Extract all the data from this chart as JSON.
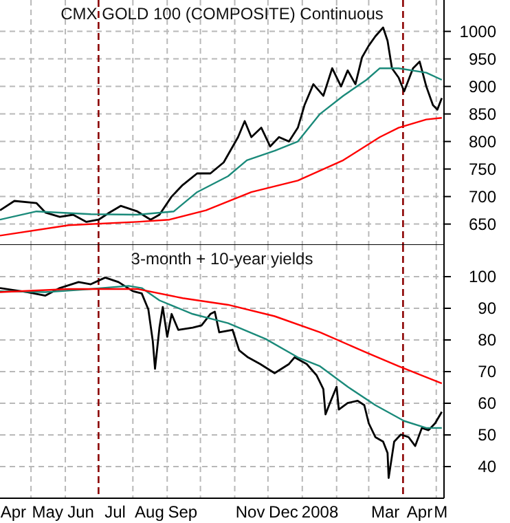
{
  "chart_data": [
    {
      "type": "line",
      "title": "CMX GOLD 100 (COMPOSITE) Continuous",
      "xlim": [
        "2007-04-03",
        "2008-05-08"
      ],
      "xticks": [
        {
          "value": "2007-05-01",
          "label": null
        },
        {
          "value": "2007-06-01",
          "label": null
        },
        {
          "value": "2007-08-01",
          "label": null
        },
        {
          "value": "2007-09-01",
          "label": null
        },
        {
          "value": "2007-10-01",
          "label": null
        },
        {
          "value": "2007-11-01",
          "label": null
        },
        {
          "value": "2007-12-01",
          "label": null
        },
        {
          "value": "2008-01-01",
          "label": null
        },
        {
          "value": "2008-02-01",
          "label": null
        },
        {
          "value": "2008-03-01",
          "label": null
        },
        {
          "value": "2008-05-01",
          "label": null
        }
      ],
      "ylim": [
        612,
        1057
      ],
      "yticks": [
        650,
        700,
        750,
        800,
        850,
        900,
        950,
        1000
      ],
      "grid": true,
      "tick_labels": "y",
      "ref_lines": [
        {
          "axis": "x",
          "value": "2007-07-01",
          "color": "#8b0000",
          "line_style": "dashed"
        },
        {
          "axis": "x",
          "value": "2008-04-01",
          "color": "#8b0000",
          "line_style": "dashed"
        }
      ],
      "series": [
        {
          "color": "#000000",
          "x": [
            "2007-04-03",
            "2007-04-16",
            "2007-05-06",
            "2007-05-14",
            "2007-05-27",
            "2007-06-08",
            "2007-06-20",
            "2007-07-01",
            "2007-07-11",
            "2007-07-21",
            "2007-08-05",
            "2007-08-17",
            "2007-08-25",
            "2007-09-05",
            "2007-09-15",
            "2007-09-28",
            "2007-10-10",
            "2007-10-22",
            "2007-11-04",
            "2007-11-10",
            "2007-11-16",
            "2007-11-25",
            "2007-12-03",
            "2007-12-11",
            "2007-12-20",
            "2007-12-28",
            "2008-01-03",
            "2008-01-11",
            "2008-01-20",
            "2008-01-28",
            "2008-02-05",
            "2008-02-11",
            "2008-02-18",
            "2008-02-24",
            "2008-03-01",
            "2008-03-07",
            "2008-03-14",
            "2008-03-18",
            "2008-03-22",
            "2008-03-28",
            "2008-04-02",
            "2008-04-10",
            "2008-04-16",
            "2008-04-22",
            "2008-04-28",
            "2008-05-02",
            "2008-05-06"
          ],
          "values": [
            675,
            692,
            688,
            671,
            663,
            667,
            654,
            658,
            671,
            683,
            673,
            658,
            667,
            700,
            721,
            742,
            742,
            762,
            808,
            837,
            808,
            825,
            791,
            808,
            800,
            825,
            866,
            904,
            883,
            933,
            900,
            929,
            904,
            953,
            974,
            991,
            1007,
            983,
            933,
            916,
            891,
            933,
            945,
            900,
            866,
            858,
            879
          ]
        },
        {
          "color": "#1a8a7a",
          "x": [
            "2007-04-03",
            "2007-05-06",
            "2007-06-24",
            "2007-08-05",
            "2007-09-07",
            "2007-09-28",
            "2007-10-26",
            "2007-11-12",
            "2007-12-07",
            "2007-12-28",
            "2008-01-17",
            "2008-02-07",
            "2008-02-28",
            "2008-03-11",
            "2008-03-28",
            "2008-04-22",
            "2008-05-06"
          ],
          "values": [
            658,
            673,
            668,
            667,
            673,
            708,
            737,
            766,
            783,
            800,
            850,
            883,
            912,
            933,
            933,
            925,
            912
          ]
        },
        {
          "color": "#ff0000",
          "x": [
            "2007-04-03",
            "2007-06-04",
            "2007-08-05",
            "2007-09-03",
            "2007-10-06",
            "2007-11-16",
            "2007-12-28",
            "2008-02-07",
            "2008-03-11",
            "2008-03-28",
            "2008-04-22",
            "2008-05-06"
          ],
          "values": [
            629,
            648,
            654,
            658,
            675,
            708,
            729,
            766,
            808,
            825,
            840,
            843
          ]
        }
      ]
    },
    {
      "type": "line",
      "title": "3-month + 10-year yields",
      "xlim": [
        "2007-04-03",
        "2008-05-08"
      ],
      "xticks": [
        {
          "value": "2007-04-15",
          "label": "Apr"
        },
        {
          "value": "2007-05-01",
          "label": null
        },
        {
          "value": "2007-05-16",
          "label": "May"
        },
        {
          "value": "2007-06-01",
          "label": null
        },
        {
          "value": "2007-06-15",
          "label": "Jun"
        },
        {
          "value": "2007-07-16",
          "label": "Jul"
        },
        {
          "value": "2007-08-01",
          "label": null
        },
        {
          "value": "2007-08-16",
          "label": "Aug"
        },
        {
          "value": "2007-09-01",
          "label": null
        },
        {
          "value": "2007-09-15",
          "label": "Sep"
        },
        {
          "value": "2007-10-01",
          "label": null
        },
        {
          "value": "2007-11-01",
          "label": null
        },
        {
          "value": "2007-11-15",
          "label": "Nov"
        },
        {
          "value": "2007-12-01",
          "label": null
        },
        {
          "value": "2007-12-15",
          "label": "Dec"
        },
        {
          "value": "2008-01-01",
          "label": null
        },
        {
          "value": "2008-01-17",
          "label": "2008"
        },
        {
          "value": "2008-02-01",
          "label": null
        },
        {
          "value": "2008-03-01",
          "label": null
        },
        {
          "value": "2008-03-16",
          "label": "Mar"
        },
        {
          "value": "2008-04-16",
          "label": "Apr"
        },
        {
          "value": "2008-05-01",
          "label": null
        },
        {
          "value": "2008-05-05",
          "label": "M"
        }
      ],
      "ylim": [
        30,
        110
      ],
      "yticks": [
        40,
        50,
        60,
        70,
        80,
        90,
        100
      ],
      "grid": true,
      "ref_lines": [
        {
          "axis": "x",
          "value": "2007-07-01",
          "color": "#8b0000",
          "line_style": "dashed"
        },
        {
          "axis": "x",
          "value": "2008-04-01",
          "color": "#8b0000",
          "line_style": "dashed"
        }
      ],
      "series": [
        {
          "color": "#000000",
          "x": [
            "2007-04-03",
            "2007-04-28",
            "2007-05-14",
            "2007-05-27",
            "2007-06-13",
            "2007-06-24",
            "2007-07-07",
            "2007-07-19",
            "2007-08-01",
            "2007-08-09",
            "2007-08-15",
            "2007-08-19",
            "2007-08-21",
            "2007-08-25",
            "2007-08-28",
            "2007-09-01",
            "2007-09-05",
            "2007-09-11",
            "2007-09-24",
            "2007-10-02",
            "2007-10-10",
            "2007-10-14",
            "2007-10-18",
            "2007-10-30",
            "2007-11-05",
            "2007-11-13",
            "2007-11-24",
            "2007-12-07",
            "2007-12-20",
            "2007-12-25",
            "2008-01-05",
            "2008-01-14",
            "2008-01-20",
            "2008-01-22",
            "2008-01-26",
            "2008-02-01",
            "2008-02-03",
            "2008-02-11",
            "2008-02-20",
            "2008-02-26",
            "2008-03-01",
            "2008-03-07",
            "2008-03-14",
            "2008-03-18",
            "2008-03-19",
            "2008-03-24",
            "2008-03-30",
            "2008-04-06",
            "2008-04-12",
            "2008-04-18",
            "2008-04-24",
            "2008-04-30",
            "2008-05-06"
          ],
          "values": [
            96.4,
            95.1,
            94,
            96.4,
            98.3,
            97.6,
            99.7,
            98.3,
            95.4,
            94.7,
            89.6,
            79.6,
            70.9,
            83.9,
            90.4,
            81,
            88.2,
            83.2,
            83.9,
            84.6,
            88.2,
            88.9,
            82.4,
            83.2,
            76.7,
            74.5,
            72.4,
            69.5,
            72.4,
            74.5,
            72.4,
            68.8,
            64.5,
            56.5,
            60.1,
            65.2,
            58,
            60.1,
            60.8,
            59.4,
            53.7,
            49.3,
            47.9,
            44.3,
            36.4,
            47.9,
            50.1,
            49.3,
            46.5,
            52.2,
            51.5,
            53.7,
            57.3
          ]
        },
        {
          "color": "#1a8a7a",
          "x": [
            "2007-04-03",
            "2007-05-14",
            "2007-06-24",
            "2007-07-28",
            "2007-08-09",
            "2007-08-25",
            "2007-09-24",
            "2007-10-26",
            "2007-11-29",
            "2007-12-28",
            "2008-01-17",
            "2008-02-11",
            "2008-03-07",
            "2008-04-02",
            "2008-04-22",
            "2008-05-06"
          ],
          "values": [
            95.4,
            95.1,
            96.1,
            97.1,
            96.4,
            92.5,
            88.2,
            85.3,
            80.3,
            74.5,
            71.7,
            65.2,
            59.4,
            54.4,
            52.2,
            52.2
          ]
        },
        {
          "color": "#ff0000",
          "x": [
            "2007-04-03",
            "2007-06-04",
            "2007-08-05",
            "2007-09-15",
            "2007-10-26",
            "2007-12-07",
            "2008-01-17",
            "2008-02-28",
            "2008-03-28",
            "2008-04-18",
            "2008-05-06"
          ],
          "values": [
            95.1,
            96.1,
            96.1,
            93.2,
            91.1,
            87.5,
            82.4,
            76,
            71.7,
            68.8,
            66.3
          ]
        }
      ]
    }
  ]
}
